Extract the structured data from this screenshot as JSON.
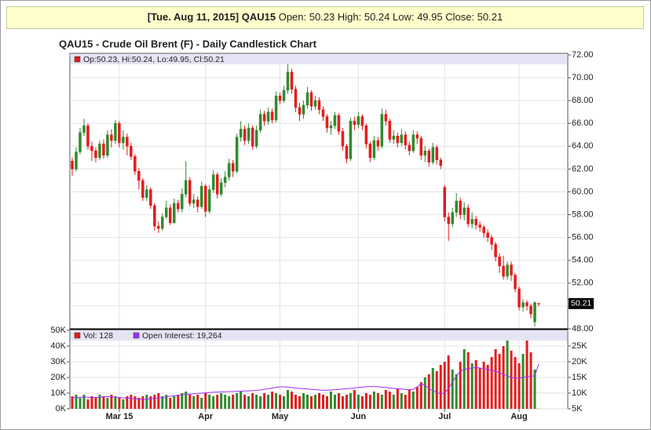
{
  "header": {
    "date": "[Tue. Aug 11, 2015]",
    "symbol": "QAU15",
    "quote": "Open: 50.23 High: 50.24 Low: 49.95 Close: 50.21"
  },
  "chart_data": [
    {
      "type": "candlestick",
      "title": "QAU15 - Crude Oil Brent (F) - Daily Candlestick Chart",
      "legend_text": "Op:50.23, Hi:50.24, Lo:49.95, Cl:50.21",
      "legend_color": "#e31c1c",
      "up_color": "#2e8b2e",
      "down_color": "#e31c1c",
      "grid": true,
      "open": [
        62.7,
        62.0,
        63.5,
        65.2,
        65.8,
        64.0,
        63.6,
        63.0,
        64.2,
        63.2,
        65.0,
        64.5,
        66.0,
        64.3,
        64.8,
        64.0,
        63.1,
        61.8,
        61.0,
        59.5,
        60.2,
        58.8,
        57.0,
        56.8,
        57.8,
        58.6,
        57.3,
        59.0,
        58.5,
        59.8,
        61.0,
        59.0,
        59.3,
        58.7,
        60.5,
        58.3,
        60.2,
        61.5,
        59.8,
        60.8,
        61.3,
        62.5,
        61.8,
        64.8,
        65.5,
        64.5,
        65.6,
        64.0,
        65.4,
        66.8,
        66.2,
        67.0,
        66.3,
        68.4,
        68.0,
        68.9,
        70.5,
        69.0,
        67.4,
        66.8,
        67.6,
        68.7,
        67.5,
        68.0,
        67.2,
        66.6,
        65.6,
        65.8,
        66.7,
        65.3,
        64.0,
        62.9,
        66.2,
        65.9,
        66.6,
        65.8,
        64.2,
        63.0,
        64.5,
        64.0,
        66.8,
        66.2,
        64.6,
        64.9,
        64.3,
        65.0,
        64.1,
        63.6,
        65.0,
        64.7,
        63.2,
        63.6,
        62.6,
        63.9,
        62.8,
        60.4,
        57.8,
        57.2,
        58.2,
        59.2,
        58.0,
        58.6,
        57.2,
        57.6,
        57.1,
        56.9,
        56.4,
        56.0,
        55.4,
        54.3,
        53.5,
        52.6,
        53.6,
        52.7,
        51.5,
        49.9,
        50.3,
        50.0,
        48.6,
        50.23
      ],
      "high": [
        63.0,
        63.9,
        65.6,
        66.4,
        66.0,
        64.4,
        63.9,
        64.5,
        64.6,
        65.4,
        65.5,
        66.3,
        66.2,
        65.4,
        65.1,
        64.3,
        63.3,
        62.1,
        61.2,
        60.6,
        60.4,
        59.0,
        57.4,
        58.1,
        59.2,
        58.9,
        59.4,
        59.3,
        60.3,
        62.7,
        61.3,
        59.8,
        59.6,
        60.9,
        60.7,
        60.6,
        61.9,
        61.7,
        61.2,
        61.8,
        62.9,
        62.8,
        65.1,
        66.2,
        65.8,
        66.0,
        65.8,
        65.8,
        67.2,
        67.1,
        67.4,
        67.3,
        68.8,
        68.7,
        69.3,
        71.2,
        70.8,
        69.3,
        67.8,
        68.0,
        69.2,
        68.9,
        68.4,
        68.3,
        67.5,
        66.8,
        66.2,
        67.0,
        66.9,
        65.6,
        64.2,
        66.5,
        66.6,
        67.0,
        66.8,
        66.0,
        64.4,
        64.9,
        64.8,
        67.3,
        67.2,
        66.4,
        65.4,
        65.2,
        65.5,
        65.3,
        64.4,
        65.4,
        65.3,
        64.9,
        64.0,
        63.8,
        64.3,
        64.1,
        63.0,
        60.6,
        58.2,
        58.6,
        59.9,
        59.5,
        59.1,
        58.9,
        58.2,
        57.9,
        57.4,
        57.1,
        56.7,
        56.2,
        55.6,
        54.6,
        54.4,
        53.9,
        53.9,
        52.9,
        51.7,
        50.6,
        50.5,
        50.2,
        50.4,
        50.24
      ],
      "low": [
        61.4,
        61.8,
        63.3,
        64.9,
        63.7,
        62.7,
        62.6,
        62.8,
        62.9,
        63.0,
        63.9,
        64.2,
        63.9,
        63.7,
        63.2,
        62.8,
        61.5,
        60.2,
        59.2,
        59.2,
        58.5,
        56.6,
        56.4,
        56.6,
        57.6,
        57.1,
        57.2,
        58.2,
        58.2,
        59.5,
        58.7,
        58.6,
        58.2,
        58.5,
        57.8,
        58.1,
        59.9,
        59.4,
        59.6,
        60.4,
        61.0,
        61.3,
        61.6,
        64.4,
        64.1,
        64.2,
        63.7,
        63.8,
        65.2,
        65.8,
        65.9,
        66.0,
        66.1,
        67.7,
        67.8,
        68.6,
        68.6,
        67.0,
        66.2,
        66.4,
        67.3,
        67.1,
        67.2,
        66.8,
        66.2,
        65.2,
        65.0,
        65.5,
        65.0,
        63.6,
        62.5,
        62.7,
        65.4,
        65.6,
        65.4,
        63.8,
        62.6,
        62.8,
        63.6,
        63.8,
        65.8,
        64.3,
        64.2,
        63.9,
        64.0,
        63.7,
        63.2,
        63.4,
        64.2,
        62.8,
        62.6,
        62.2,
        62.4,
        62.4,
        62.0,
        57.4,
        55.7,
        56.9,
        57.8,
        57.6,
        57.5,
        56.9,
        56.8,
        56.7,
        56.5,
        56.0,
        55.6,
        54.9,
        53.9,
        52.9,
        52.3,
        52.3,
        52.2,
        51.2,
        49.6,
        49.5,
        49.6,
        48.9,
        48.2,
        49.95
      ],
      "close": [
        62.0,
        63.5,
        65.2,
        65.8,
        64.0,
        63.6,
        63.0,
        64.2,
        63.2,
        65.0,
        64.5,
        66.0,
        64.3,
        64.8,
        64.0,
        63.1,
        61.8,
        61.0,
        59.5,
        60.2,
        58.8,
        57.0,
        56.8,
        57.8,
        58.6,
        57.3,
        59.0,
        58.5,
        59.8,
        61.0,
        59.0,
        59.3,
        58.7,
        60.5,
        58.3,
        60.2,
        61.5,
        59.8,
        60.8,
        61.3,
        62.5,
        61.8,
        64.8,
        65.5,
        64.5,
        65.6,
        64.0,
        65.4,
        66.8,
        66.2,
        67.0,
        66.3,
        68.4,
        68.0,
        68.9,
        70.5,
        69.0,
        67.4,
        66.8,
        67.6,
        68.7,
        67.5,
        68.0,
        67.2,
        66.6,
        65.6,
        65.8,
        66.7,
        65.3,
        64.0,
        62.9,
        66.2,
        65.9,
        66.6,
        65.8,
        64.2,
        63.0,
        64.5,
        64.0,
        66.8,
        66.2,
        64.6,
        64.9,
        64.3,
        65.0,
        64.1,
        63.6,
        65.0,
        64.7,
        63.2,
        63.6,
        62.6,
        63.9,
        62.8,
        62.3,
        57.8,
        57.2,
        58.2,
        59.2,
        58.0,
        58.6,
        57.2,
        57.6,
        57.1,
        56.9,
        56.4,
        56.0,
        55.4,
        54.3,
        53.5,
        52.6,
        53.6,
        52.7,
        51.5,
        49.9,
        50.3,
        50.0,
        49.3,
        50.3,
        50.21
      ],
      "ylim": [
        48,
        72
      ],
      "yticks": [
        {
          "value": 48,
          "label": "48.00"
        },
        {
          "value": 50,
          "label": "50.00"
        },
        {
          "value": 52,
          "label": "52.00"
        },
        {
          "value": 54,
          "label": "54.00"
        },
        {
          "value": 56,
          "label": "56.00"
        },
        {
          "value": 58,
          "label": "58.00"
        },
        {
          "value": 60,
          "label": "60.00"
        },
        {
          "value": 62,
          "label": "62.00"
        },
        {
          "value": 64,
          "label": "64.00"
        },
        {
          "value": 66,
          "label": "66.00"
        },
        {
          "value": 68,
          "label": "68.00"
        },
        {
          "value": 70,
          "label": "70.00"
        },
        {
          "value": 72,
          "label": "72.00"
        }
      ]
    },
    {
      "type": "bar",
      "grid": true,
      "categories": [
        null,
        null,
        null,
        null,
        null,
        null,
        null,
        null,
        null,
        null,
        null,
        null,
        "Mar 15",
        null,
        null,
        null,
        null,
        null,
        null,
        null,
        null,
        null,
        null,
        null,
        null,
        null,
        null,
        null,
        null,
        null,
        null,
        null,
        null,
        null,
        "Apr",
        null,
        null,
        null,
        null,
        null,
        null,
        null,
        null,
        null,
        null,
        null,
        null,
        null,
        null,
        null,
        null,
        null,
        null,
        "May",
        null,
        null,
        null,
        null,
        null,
        null,
        null,
        null,
        null,
        null,
        null,
        null,
        null,
        null,
        null,
        null,
        null,
        null,
        null,
        "Jun",
        null,
        null,
        null,
        null,
        null,
        null,
        null,
        null,
        null,
        null,
        null,
        null,
        null,
        null,
        null,
        null,
        null,
        null,
        null,
        null,
        null,
        "Jul",
        null,
        null,
        null,
        null,
        null,
        null,
        null,
        null,
        null,
        null,
        null,
        null,
        null,
        null,
        null,
        null,
        null,
        null,
        "Aug",
        null,
        null,
        null,
        null,
        null
      ],
      "series": [
        {
          "name": "Vol: 128",
          "color": "#e31c1c",
          "values": [
            8000,
            9000,
            7000,
            9000,
            6000,
            8000,
            7000,
            9000,
            8000,
            7000,
            9000,
            8000,
            7000,
            6000,
            8000,
            9000,
            8000,
            7000,
            8000,
            9000,
            8000,
            9000,
            10000,
            8000,
            9000,
            7000,
            8000,
            9000,
            10000,
            11000,
            9000,
            8000,
            9000,
            7000,
            10000,
            9000,
            8000,
            9000,
            10000,
            9000,
            8000,
            9000,
            10000,
            11000,
            9000,
            8000,
            10000,
            9000,
            8000,
            10000,
            9000,
            11000,
            10000,
            9000,
            8000,
            12000,
            11000,
            9000,
            8000,
            10000,
            9000,
            8000,
            9000,
            10000,
            9000,
            8000,
            11000,
            9000,
            10000,
            8000,
            9000,
            10000,
            12000,
            9000,
            8000,
            10000,
            9000,
            11000,
            10000,
            9000,
            12000,
            11000,
            9000,
            13000,
            10000,
            9000,
            12000,
            11000,
            14000,
            17000,
            20000,
            22000,
            26000,
            24000,
            28000,
            30000,
            34000,
            25000,
            22000,
            30000,
            38000,
            36000,
            29000,
            31000,
            26000,
            30000,
            28000,
            33000,
            38000,
            35000,
            40000,
            47000,
            37000,
            33000,
            29000,
            35000,
            44000,
            36000,
            25000,
            128
          ]
        },
        {
          "name": "Open Interest: 19,264",
          "color": "#9b30ff",
          "axis": "y2",
          "values": [
            8500,
            8600,
            8700,
            8800,
            8700,
            8600,
            8600,
            8700,
            8800,
            8900,
            8800,
            8700,
            8600,
            8500,
            8400,
            8300,
            8200,
            8100,
            8000,
            8100,
            8200,
            8300,
            8500,
            8600,
            8800,
            9000,
            9200,
            9300,
            9500,
            9600,
            9700,
            9800,
            9900,
            10000,
            10100,
            10200,
            10300,
            10300,
            10400,
            10400,
            10500,
            10500,
            10600,
            10600,
            10700,
            10700,
            10800,
            10900,
            11000,
            11200,
            11400,
            11600,
            11800,
            12000,
            12000,
            11900,
            11800,
            11600,
            11500,
            11400,
            11300,
            11200,
            11100,
            11000,
            10900,
            10900,
            11000,
            11100,
            11200,
            11300,
            11400,
            11500,
            11600,
            11800,
            11900,
            12000,
            12100,
            12100,
            12000,
            11900,
            11800,
            11600,
            11500,
            11400,
            11300,
            11200,
            11100,
            11200,
            12000,
            13000,
            12500,
            11500,
            10800,
            10200,
            9800,
            10000,
            11500,
            13500,
            15500,
            17000,
            17500,
            17800,
            18000,
            18200,
            18000,
            17800,
            17500,
            17200,
            17000,
            16500,
            16000,
            15500,
            15000,
            14800,
            14700,
            15000,
            15200,
            15400,
            15500,
            19264
          ]
        }
      ],
      "ylim": [
        0,
        50000
      ],
      "yticks": [
        {
          "value": 0,
          "label": "0K"
        },
        {
          "value": 10000,
          "label": "10K"
        },
        {
          "value": 20000,
          "label": "20K"
        },
        {
          "value": 30000,
          "label": "30K"
        },
        {
          "value": 40000,
          "label": "40K"
        },
        {
          "value": 50000,
          "label": "50K"
        }
      ],
      "y2lim": [
        5000,
        30000
      ],
      "y2ticks": [
        {
          "value": 5000,
          "label": "5K"
        },
        {
          "value": 10000,
          "label": "10K"
        },
        {
          "value": 15000,
          "label": "15K"
        },
        {
          "value": 20000,
          "label": "20K"
        },
        {
          "value": 25000,
          "label": "25K"
        }
      ]
    }
  ]
}
